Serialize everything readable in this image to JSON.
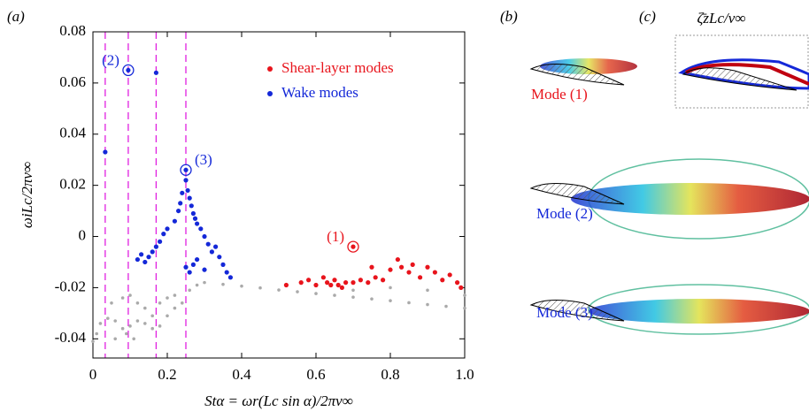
{
  "chart_data": {
    "type": "scatter",
    "panel_labels": [
      "(a)",
      "(b)",
      "(c)"
    ],
    "panel_c_title": "ζ̄zLc/v∞",
    "x_label": "Stα = ωr(Lc sin α)/2πv∞",
    "y_label": "ωiLc/2πv∞",
    "xlim": [
      0,
      1
    ],
    "ylim": [
      -0.0475,
      0.08
    ],
    "xticks": [
      0,
      0.2,
      0.4,
      0.6,
      0.8,
      {
        "value": 1,
        "label": "1.0"
      }
    ],
    "yticks": [
      -0.04,
      -0.02,
      0,
      0.02,
      0.04,
      0.06,
      0.08
    ],
    "vlines": [
      0.033,
      0.095,
      0.17,
      0.25
    ],
    "vline_color": "#e020e0",
    "series": [
      {
        "color": "#aaaaaa",
        "x": [
          0.3,
          0.35,
          0.4,
          0.45,
          0.5,
          0.55,
          0.6,
          0.65,
          0.7,
          0.75,
          0.8,
          0.85,
          0.9,
          0.95,
          1.0,
          0.7,
          0.8,
          0.9,
          1.0,
          0.0,
          0.01,
          0.02,
          0.04,
          0.06,
          0.08,
          0.1,
          0.12,
          0.14,
          0.16,
          0.18,
          0.2,
          0.22,
          0.24,
          0.26,
          0.28,
          0.05,
          0.08,
          0.1,
          0.12,
          0.14,
          0.16,
          0.18,
          0.2,
          0.22,
          0.06,
          0.09,
          0.11
        ],
        "values": [
          -0.018,
          -0.0187,
          -0.0194,
          -0.0201,
          -0.0209,
          -0.0216,
          -0.0223,
          -0.023,
          -0.0237,
          -0.0244,
          -0.0251,
          -0.0259,
          -0.0266,
          -0.0273,
          -0.028,
          -0.021,
          -0.02,
          -0.021,
          -0.023,
          -0.041,
          -0.038,
          -0.034,
          -0.032,
          -0.033,
          -0.036,
          -0.035,
          -0.033,
          -0.034,
          -0.036,
          -0.035,
          -0.031,
          -0.028,
          -0.026,
          -0.021,
          -0.019,
          -0.026,
          -0.024,
          -0.023,
          -0.026,
          -0.028,
          -0.031,
          -0.026,
          -0.024,
          -0.023,
          -0.04,
          -0.038,
          -0.04
        ]
      },
      {
        "name": "Shear-layer modes",
        "color": "#e8141c",
        "x": [
          0.52,
          0.56,
          0.58,
          0.6,
          0.62,
          0.63,
          0.64,
          0.65,
          0.66,
          0.67,
          0.68,
          0.7,
          0.72,
          0.74,
          0.76,
          0.78,
          0.8,
          0.82,
          0.83,
          0.85,
          0.86,
          0.88,
          0.9,
          0.92,
          0.94,
          0.96,
          0.98,
          0.99,
          0.75,
          0.7
        ],
        "values": [
          -0.019,
          -0.018,
          -0.017,
          -0.019,
          -0.016,
          -0.018,
          -0.019,
          -0.017,
          -0.019,
          -0.02,
          -0.018,
          -0.004,
          -0.017,
          -0.018,
          -0.016,
          -0.017,
          -0.013,
          -0.009,
          -0.012,
          -0.014,
          -0.011,
          -0.016,
          -0.012,
          -0.014,
          -0.017,
          -0.015,
          -0.018,
          -0.02,
          -0.012,
          -0.018
        ]
      },
      {
        "name": "Wake modes",
        "color": "#1428d8",
        "x": [
          0.033,
          0.095,
          0.17,
          0.25,
          0.25,
          0.255,
          0.26,
          0.265,
          0.27,
          0.275,
          0.28,
          0.29,
          0.3,
          0.31,
          0.32,
          0.33,
          0.34,
          0.35,
          0.36,
          0.37,
          0.24,
          0.235,
          0.23,
          0.22,
          0.2,
          0.19,
          0.18,
          0.17,
          0.16,
          0.15,
          0.14,
          0.13,
          0.12,
          0.25,
          0.26,
          0.27,
          0.28,
          0.3
        ],
        "values": [
          0.033,
          0.065,
          0.064,
          0.026,
          0.022,
          0.018,
          0.015,
          0.012,
          0.009,
          0.007,
          0.005,
          0.003,
          0.0,
          -0.003,
          -0.006,
          -0.004,
          -0.008,
          -0.011,
          -0.014,
          -0.016,
          0.017,
          0.013,
          0.01,
          0.006,
          0.003,
          0.001,
          -0.002,
          -0.004,
          -0.006,
          -0.008,
          -0.01,
          -0.007,
          -0.009,
          -0.012,
          -0.014,
          -0.011,
          -0.009,
          -0.013
        ]
      }
    ],
    "annotations": [
      {
        "text": "(1)",
        "x": 0.7,
        "y": -0.004,
        "color": "#e8141c"
      },
      {
        "text": "(2)",
        "x": 0.095,
        "y": 0.065,
        "color": "#1428d8"
      },
      {
        "text": "(3)",
        "x": 0.25,
        "y": 0.026,
        "color": "#1428d8"
      }
    ],
    "mode_labels": [
      {
        "text": "Mode (1)",
        "color": "#e8141c"
      },
      {
        "text": "Mode (2)",
        "color": "#1428d8"
      },
      {
        "text": "Mode (3)",
        "color": "#1428d8"
      }
    ]
  }
}
